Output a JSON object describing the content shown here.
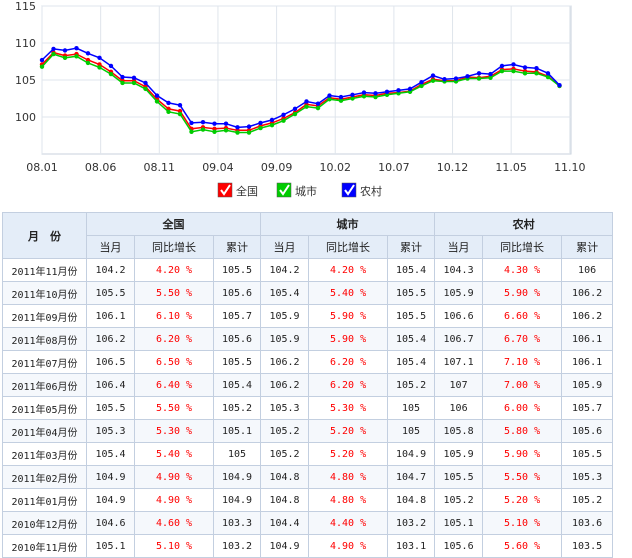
{
  "chart_data": {
    "type": "line",
    "x_tick_labels": [
      "08.01",
      "08.06",
      "08.11",
      "09.04",
      "09.09",
      "10.02",
      "10.07",
      "10.12",
      "11.05",
      "11.10"
    ],
    "ylim": [
      95,
      115
    ],
    "y_ticks": [
      100,
      105,
      110,
      115
    ],
    "grid": true,
    "legend_position": "bottom",
    "series": [
      {
        "name": "全国",
        "color": "#ff0000",
        "values": [
          107.1,
          108.7,
          108.3,
          108.5,
          107.7,
          107.1,
          106.1,
          104.9,
          104.9,
          104.1,
          102.4,
          101.1,
          100.8,
          98.4,
          98.6,
          98.4,
          98.5,
          98.2,
          98.2,
          98.8,
          99.2,
          99.8,
          100.6,
          101.7,
          101.5,
          102.6,
          102.4,
          102.7,
          103.0,
          102.9,
          103.2,
          103.3,
          103.5,
          104.4,
          105.1,
          104.9,
          104.9,
          105.4,
          105.3,
          105.5,
          106.4,
          106.5,
          106.2,
          106.1,
          105.5,
          104.2
        ]
      },
      {
        "name": "城市",
        "color": "#00cc00",
        "values": [
          106.8,
          108.5,
          108.0,
          108.2,
          107.3,
          106.7,
          105.8,
          104.6,
          104.6,
          103.8,
          102.1,
          100.7,
          100.4,
          98.0,
          98.3,
          98.0,
          98.2,
          97.9,
          97.9,
          98.5,
          98.9,
          99.5,
          100.4,
          101.4,
          101.2,
          102.4,
          102.2,
          102.5,
          102.8,
          102.7,
          103.0,
          103.2,
          103.4,
          104.2,
          104.9,
          104.8,
          104.8,
          105.2,
          105.2,
          105.3,
          106.2,
          106.2,
          105.9,
          105.9,
          105.4,
          104.2
        ]
      },
      {
        "name": "农村",
        "color": "#0000ff",
        "values": [
          107.7,
          109.2,
          109.0,
          109.3,
          108.6,
          108.0,
          106.9,
          105.4,
          105.3,
          104.6,
          102.9,
          101.9,
          101.6,
          99.2,
          99.3,
          99.1,
          99.1,
          98.6,
          98.7,
          99.2,
          99.6,
          100.3,
          101.1,
          102.1,
          101.8,
          102.9,
          102.7,
          103.0,
          103.3,
          103.2,
          103.4,
          103.6,
          103.8,
          104.7,
          105.6,
          105.1,
          105.2,
          105.5,
          105.9,
          105.8,
          106.9,
          107.1,
          106.7,
          106.6,
          105.9,
          104.3
        ]
      }
    ]
  },
  "table": {
    "month_header": "月　份",
    "groups": [
      "全国",
      "城市",
      "农村"
    ],
    "sub_headers": [
      "当月",
      "同比增长",
      "累计"
    ],
    "rows": [
      {
        "month": "2011年11月份",
        "v": [
          "104.2",
          "4.20 %",
          "105.5",
          "104.2",
          "4.20 %",
          "105.4",
          "104.3",
          "4.30 %",
          "106"
        ]
      },
      {
        "month": "2011年10月份",
        "v": [
          "105.5",
          "5.50 %",
          "105.6",
          "105.4",
          "5.40 %",
          "105.5",
          "105.9",
          "5.90 %",
          "106.2"
        ]
      },
      {
        "month": "2011年09月份",
        "v": [
          "106.1",
          "6.10 %",
          "105.7",
          "105.9",
          "5.90 %",
          "105.5",
          "106.6",
          "6.60 %",
          "106.2"
        ]
      },
      {
        "month": "2011年08月份",
        "v": [
          "106.2",
          "6.20 %",
          "105.6",
          "105.9",
          "5.90 %",
          "105.4",
          "106.7",
          "6.70 %",
          "106.1"
        ]
      },
      {
        "month": "2011年07月份",
        "v": [
          "106.5",
          "6.50 %",
          "105.5",
          "106.2",
          "6.20 %",
          "105.4",
          "107.1",
          "7.10 %",
          "106.1"
        ]
      },
      {
        "month": "2011年06月份",
        "v": [
          "106.4",
          "6.40 %",
          "105.4",
          "106.2",
          "6.20 %",
          "105.2",
          "107",
          "7.00 %",
          "105.9"
        ]
      },
      {
        "month": "2011年05月份",
        "v": [
          "105.5",
          "5.50 %",
          "105.2",
          "105.3",
          "5.30 %",
          "105",
          "106",
          "6.00 %",
          "105.7"
        ]
      },
      {
        "month": "2011年04月份",
        "v": [
          "105.3",
          "5.30 %",
          "105.1",
          "105.2",
          "5.20 %",
          "105",
          "105.8",
          "5.80 %",
          "105.6"
        ]
      },
      {
        "month": "2011年03月份",
        "v": [
          "105.4",
          "5.40 %",
          "105",
          "105.2",
          "5.20 %",
          "104.9",
          "105.9",
          "5.90 %",
          "105.5"
        ]
      },
      {
        "month": "2011年02月份",
        "v": [
          "104.9",
          "4.90 %",
          "104.9",
          "104.8",
          "4.80 %",
          "104.7",
          "105.5",
          "5.50 %",
          "105.3"
        ]
      },
      {
        "month": "2011年01月份",
        "v": [
          "104.9",
          "4.90 %",
          "104.9",
          "104.8",
          "4.80 %",
          "104.8",
          "105.2",
          "5.20 %",
          "105.2"
        ]
      },
      {
        "month": "2010年12月份",
        "v": [
          "104.6",
          "4.60 %",
          "103.3",
          "104.4",
          "4.40 %",
          "103.2",
          "105.1",
          "5.10 %",
          "103.6"
        ]
      },
      {
        "month": "2010年11月份",
        "v": [
          "105.1",
          "5.10 %",
          "103.2",
          "104.9",
          "4.90 %",
          "103.1",
          "105.6",
          "5.60 %",
          "103.5"
        ]
      }
    ]
  }
}
